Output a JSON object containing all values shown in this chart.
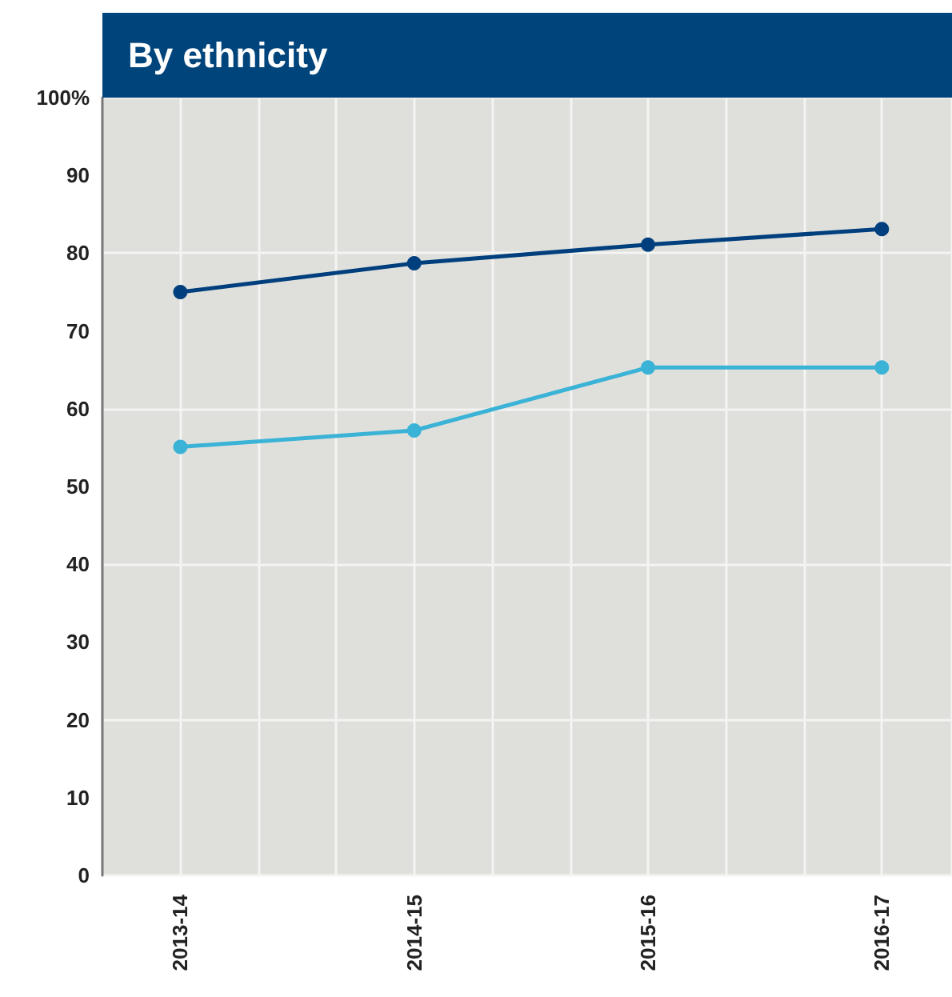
{
  "chart_data": {
    "type": "line",
    "title": "By ethnicity",
    "categories": [
      "2013-14",
      "2014-15",
      "2015-16",
      "2016-17"
    ],
    "series": [
      {
        "color": "#003f7d",
        "values": [
          75.0,
          78.7,
          81.1,
          83.1
        ]
      },
      {
        "color": "#3bb3d6",
        "values": [
          55.1,
          57.2,
          65.3,
          65.3
        ]
      }
    ],
    "ylim": [
      0,
      100
    ],
    "yticks": [
      0,
      10,
      20,
      30,
      40,
      50,
      60,
      70,
      80,
      90,
      {
        "value": 100,
        "label": "100%"
      }
    ],
    "grid": true,
    "marker": "circle",
    "line_style": "solid"
  }
}
